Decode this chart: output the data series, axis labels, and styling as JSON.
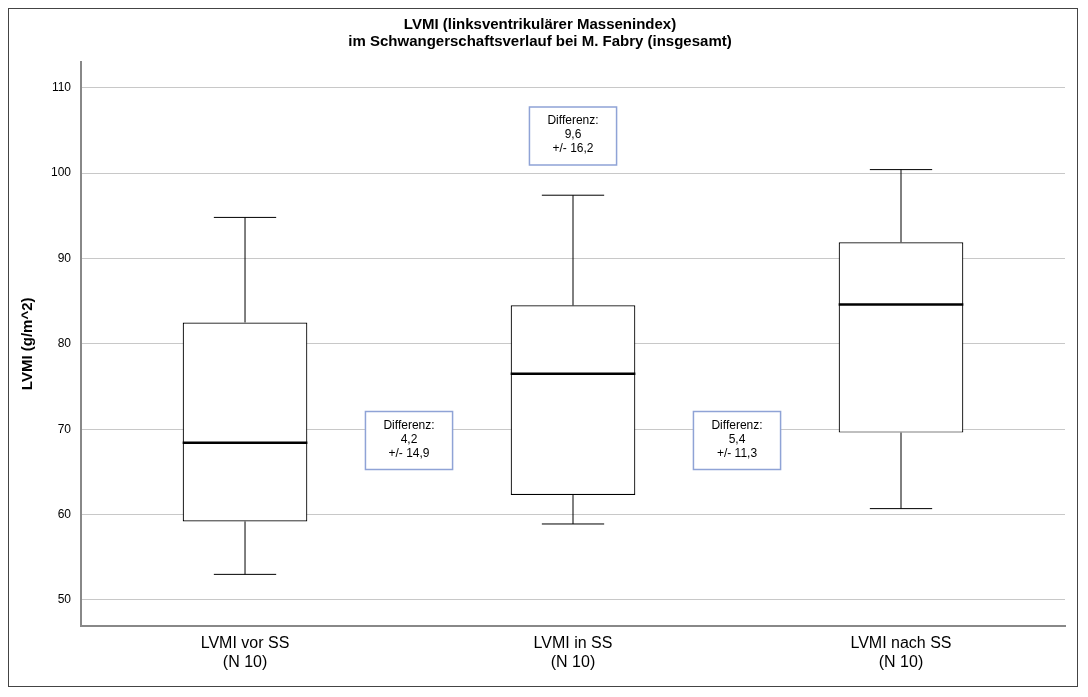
{
  "chart_data": {
    "type": "box",
    "title": "LVMI (linksventrikulärer Massenindex)\nim Schwangerschaftsverlauf bei M. Fabry (insgesamt)",
    "ylabel": "LVMI (g/m^2)",
    "categories": [
      "LVMI vor SS\n(N 10)",
      "LVMI in SS\n(N 10)",
      "LVMI nach SS\n(N 10)"
    ],
    "boxes": [
      {
        "low": 53.0,
        "q1": 59.2,
        "median": 68.4,
        "q3": 82.5,
        "high": 94.8
      },
      {
        "low": 58.9,
        "q1": 62.3,
        "median": 76.5,
        "q3": 84.5,
        "high": 97.4
      },
      {
        "low": 60.7,
        "q1": 69.6,
        "median": 84.6,
        "q3": 91.9,
        "high": 100.4
      }
    ],
    "color": "#000000",
    "ylim": [
      47,
      113
    ],
    "yticks": [
      50,
      60,
      70,
      80,
      90,
      100,
      110
    ],
    "grid": "y",
    "legend": false,
    "annotations": [
      "Differenz:\n4,2\n+/- 14,9",
      "Differenz:\n9,6\n+/- 16,2",
      "Differenz:\n5,4\n+/- 11,3"
    ]
  }
}
